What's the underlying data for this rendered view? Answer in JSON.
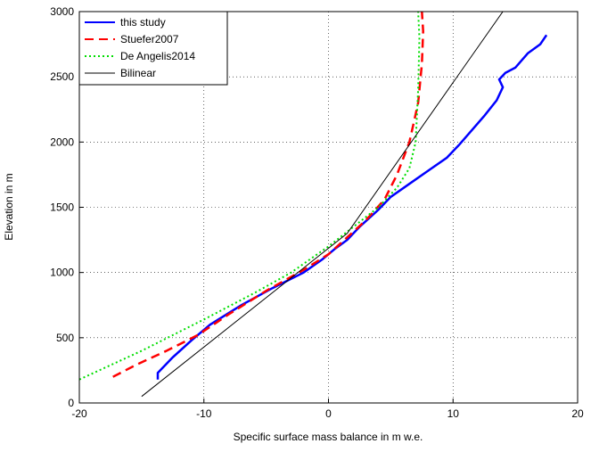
{
  "chart_data": {
    "type": "line",
    "xlabel": "Specific surface mass balance in m w.e.",
    "ylabel": "Elevation in m",
    "xlim": [
      -20,
      20
    ],
    "ylim": [
      0,
      3000
    ],
    "xticks": [
      -20,
      -10,
      0,
      10,
      20
    ],
    "yticks": [
      0,
      500,
      1000,
      1500,
      2000,
      2500,
      3000
    ],
    "grid": true,
    "legend": "upper-left",
    "series": [
      {
        "name": "this study",
        "color": "#0000ff",
        "style": "solid",
        "width": 2.5,
        "x": [
          -13.7,
          -13.7,
          -12.5,
          -11,
          -9.5,
          -7,
          -4.5,
          -2,
          -0.5,
          0.5,
          1.5,
          2.5,
          4,
          5,
          6.5,
          8,
          9.5,
          10.5,
          12.5,
          13.5,
          14,
          13.7,
          14.2,
          15,
          16,
          17,
          17.5
        ],
        "values": [
          180,
          230,
          350,
          480,
          600,
          750,
          880,
          1000,
          1100,
          1180,
          1250,
          1350,
          1480,
          1580,
          1680,
          1780,
          1880,
          1980,
          2200,
          2320,
          2420,
          2480,
          2530,
          2570,
          2680,
          2750,
          2820
        ]
      },
      {
        "name": "Stuefer2007",
        "color": "#ff0000",
        "style": "dashed",
        "width": 2.5,
        "x": [
          -17.3,
          -15.5,
          -13,
          -10.5,
          -8,
          -5,
          -2,
          0,
          1.5,
          3,
          4.5,
          5.5,
          6.5,
          7.2,
          7.5,
          7.6,
          7.5
        ],
        "values": [
          200,
          290,
          400,
          520,
          680,
          860,
          1020,
          1140,
          1270,
          1400,
          1560,
          1750,
          2000,
          2300,
          2600,
          2850,
          3000
        ]
      },
      {
        "name": "De Angelis2014",
        "color": "#00dd00",
        "style": "dotted",
        "width": 2,
        "x": [
          -20,
          -15,
          -10,
          -6,
          -3,
          0,
          2,
          4,
          5.5,
          6.5,
          7,
          7.2,
          7.3,
          7.2
        ],
        "values": [
          180,
          400,
          640,
          840,
          1000,
          1200,
          1350,
          1500,
          1650,
          1800,
          2000,
          2400,
          2800,
          3000
        ]
      },
      {
        "name": "Bilinear",
        "color": "#000000",
        "style": "solid",
        "width": 1,
        "x": [
          -15,
          1.5,
          14
        ],
        "values": [
          50,
          1300,
          3000
        ]
      }
    ]
  }
}
